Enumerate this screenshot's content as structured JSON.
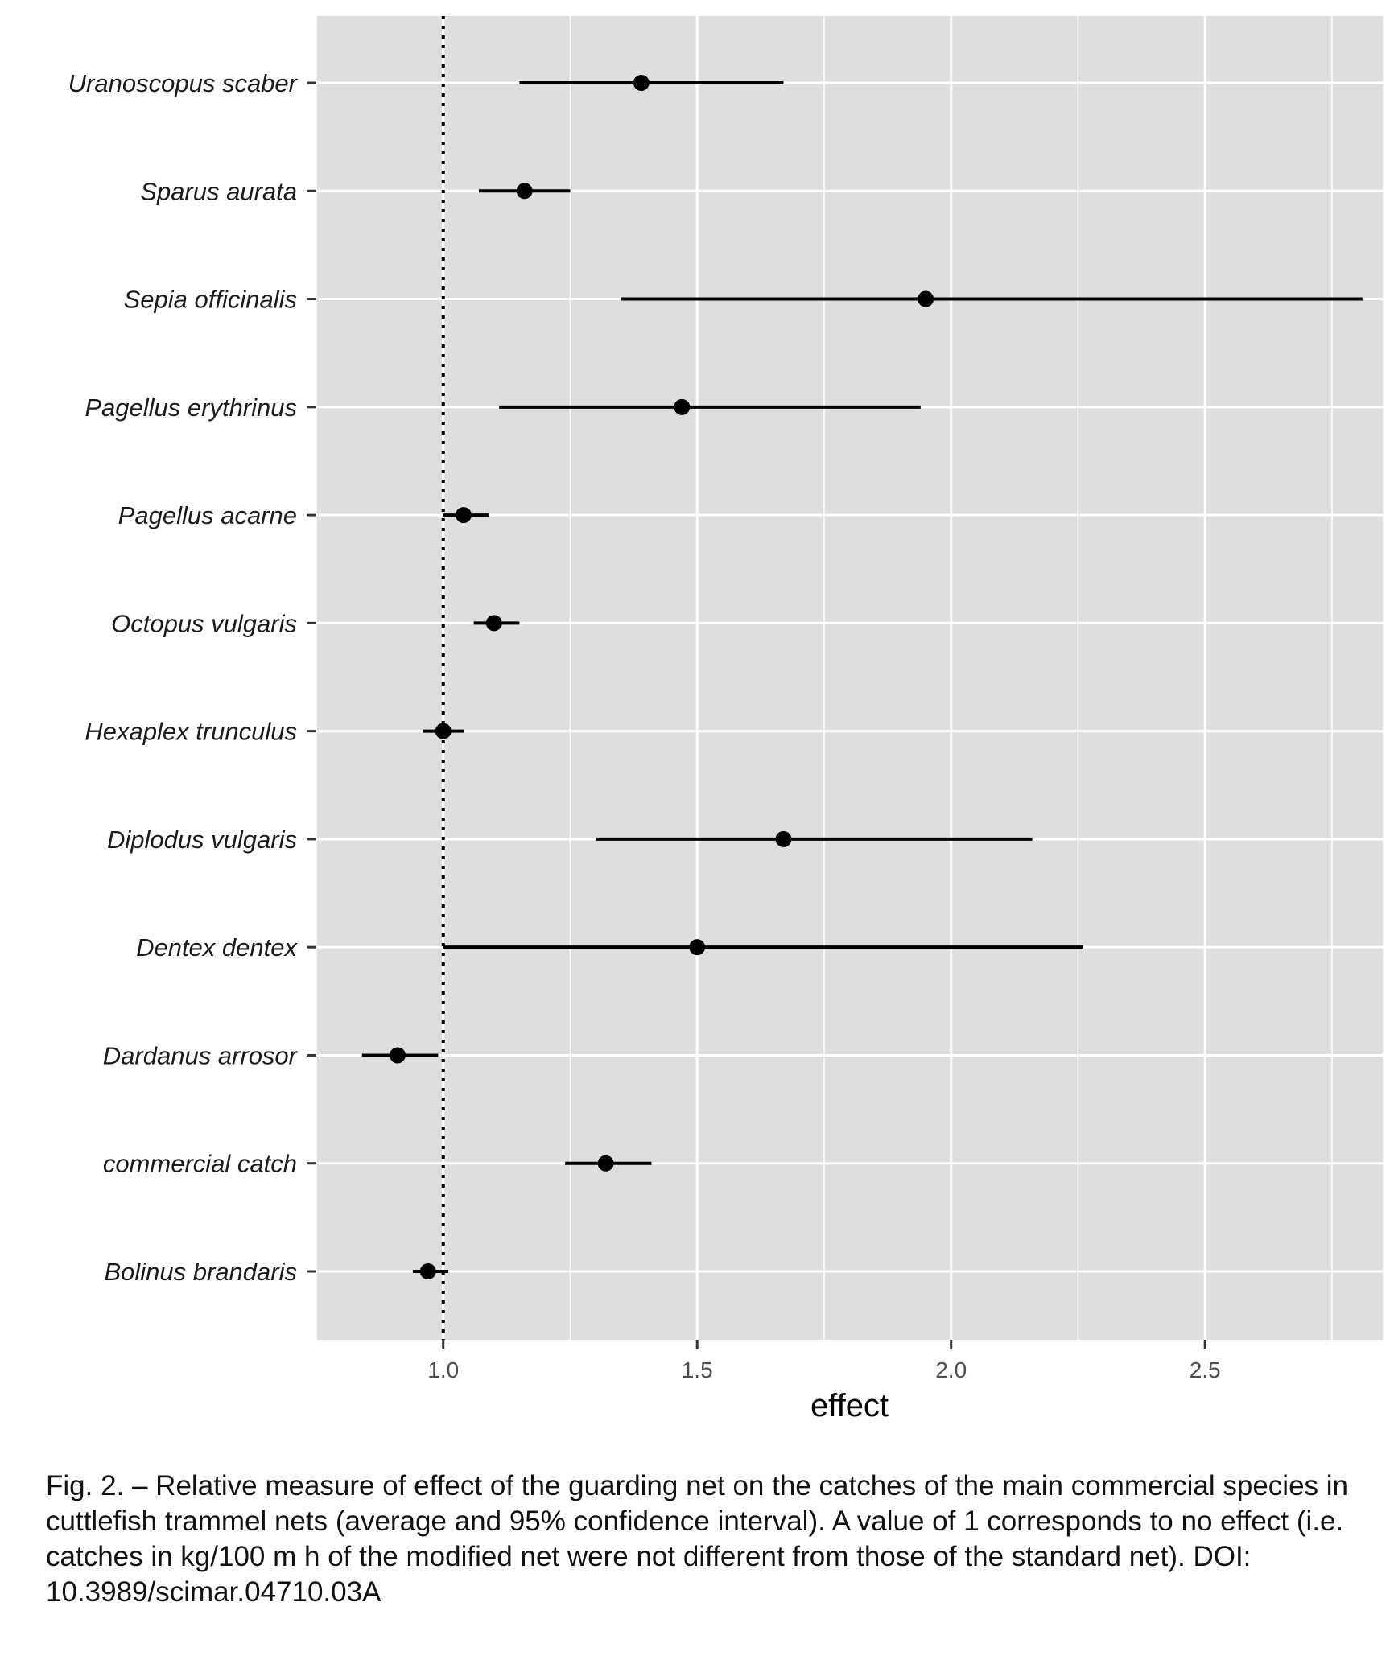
{
  "chart_data": {
    "type": "errorbar",
    "orientation": "horizontal",
    "title": "",
    "xlabel": "effect",
    "ylabel": "",
    "xlim": [
      0.75,
      2.85
    ],
    "x_ticks": [
      1.0,
      1.5,
      2.0,
      2.5
    ],
    "x_tick_labels": [
      "1.0",
      "1.5",
      "2.0",
      "2.5"
    ],
    "x_minor_ticks": [
      0.75,
      1.25,
      1.75,
      2.25,
      2.75
    ],
    "reference_line": {
      "x": 1.0,
      "style": "dotted"
    },
    "grid": true,
    "panel_background": "#dedede",
    "grid_color": "#ffffff",
    "point_color": "#000000",
    "categories": [
      "Uranoscopus scaber",
      "Sparus aurata",
      "Sepia officinalis",
      "Pagellus erythrinus",
      "Pagellus acarne",
      "Octopus vulgaris",
      "Hexaplex trunculus",
      "Diplodus vulgaris",
      "Dentex dentex",
      "Dardanus arrosor",
      "commercial catch",
      "Bolinus brandaris"
    ],
    "values": [
      1.39,
      1.16,
      1.95,
      1.47,
      1.04,
      1.1,
      1.0,
      1.67,
      1.5,
      0.91,
      1.32,
      0.97
    ],
    "lower": [
      1.15,
      1.07,
      1.35,
      1.11,
      1.0,
      1.06,
      0.96,
      1.3,
      1.0,
      0.84,
      1.24,
      0.94
    ],
    "upper": [
      1.67,
      1.25,
      2.81,
      1.94,
      1.09,
      1.15,
      1.04,
      2.16,
      2.26,
      0.99,
      1.41,
      1.01
    ]
  },
  "caption": "Fig. 2. – Relative measure of effect of the guarding net on the catches of the main commercial species in cuttlefish trammel nets (average and 95% confidence interval). A value of 1 corresponds to no effect (i.e. catches in kg/100 m h of the modified net were not different from those of the standard net). DOI: 10.3989/scimar.04710.03A"
}
